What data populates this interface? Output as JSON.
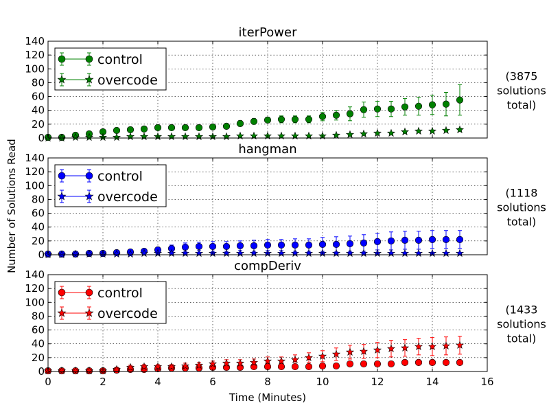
{
  "figure": {
    "xlabel": "Time (Minutes)",
    "ylabel": "Number of Solutions Read"
  },
  "chart_data": [
    {
      "type": "scatter",
      "title": "iterPower",
      "note": [
        "(3875",
        "solutions",
        "total)"
      ],
      "color": "#008000",
      "xlim": [
        0,
        16
      ],
      "ylim": [
        0,
        140
      ],
      "xticks": [
        "0",
        "2",
        "4",
        "6",
        "8",
        "10",
        "12",
        "14",
        "16"
      ],
      "yticks": [
        "0",
        "20",
        "40",
        "60",
        "80",
        "100",
        "120",
        "140"
      ],
      "grid": true,
      "legend_position": "upper-left",
      "x": [
        0,
        0.5,
        1,
        1.5,
        2,
        2.5,
        3,
        3.5,
        4,
        4.5,
        5,
        5.5,
        6,
        6.5,
        7,
        7.5,
        8,
        8.5,
        9,
        9.5,
        10,
        10.5,
        11,
        11.5,
        12,
        12.5,
        13,
        13.5,
        14,
        14.5,
        15
      ],
      "series": [
        {
          "name": "control",
          "marker": "circle",
          "values": [
            1,
            1,
            4,
            6,
            9,
            11,
            12,
            13,
            15,
            15,
            15,
            15,
            16,
            17,
            21,
            24,
            26,
            27,
            27,
            27,
            31,
            33,
            35,
            41,
            42,
            42,
            45,
            46,
            48,
            49,
            55
          ],
          "errors": [
            1,
            1,
            2,
            3,
            3,
            3,
            3,
            3,
            3,
            3,
            3,
            3,
            3,
            3,
            4,
            4,
            4,
            5,
            5,
            5,
            6,
            7,
            10,
            11,
            11,
            11,
            12,
            13,
            14,
            17,
            22
          ]
        },
        {
          "name": "overcode",
          "marker": "star",
          "values": [
            0,
            0,
            1,
            1,
            1,
            1,
            2,
            2,
            2,
            2,
            2,
            2,
            2,
            2,
            3,
            3,
            3,
            3,
            3,
            3,
            3,
            4,
            5,
            6,
            7,
            7,
            9,
            10,
            10,
            11,
            12
          ],
          "errors": [
            0,
            0,
            1,
            1,
            1,
            1,
            1,
            1,
            1,
            1,
            1,
            1,
            1,
            1,
            1,
            1,
            1,
            1,
            1,
            1,
            1,
            1,
            1,
            1,
            1,
            1,
            1,
            1,
            1,
            1,
            2
          ]
        }
      ]
    },
    {
      "type": "scatter",
      "title": "hangman",
      "note": [
        "(1118",
        "solutions",
        "total)"
      ],
      "color": "#0000ff",
      "xlim": [
        0,
        16
      ],
      "ylim": [
        0,
        140
      ],
      "xticks": [
        "0",
        "2",
        "4",
        "6",
        "8",
        "10",
        "12",
        "14",
        "16"
      ],
      "yticks": [
        "0",
        "20",
        "40",
        "60",
        "80",
        "100",
        "120",
        "140"
      ],
      "grid": true,
      "legend_position": "upper-left",
      "x": [
        0,
        0.5,
        1,
        1.5,
        2,
        2.5,
        3,
        3.5,
        4,
        4.5,
        5,
        5.5,
        6,
        6.5,
        7,
        7.5,
        8,
        8.5,
        9,
        9.5,
        10,
        10.5,
        11,
        11.5,
        12,
        12.5,
        13,
        13.5,
        14,
        14.5,
        15
      ],
      "series": [
        {
          "name": "control",
          "marker": "circle",
          "values": [
            1,
            1,
            1,
            2,
            2,
            3,
            4,
            5,
            7,
            9,
            11,
            12,
            12,
            12,
            13,
            13,
            14,
            14,
            14,
            14,
            15,
            15,
            16,
            17,
            19,
            20,
            21,
            21,
            22,
            22,
            22
          ],
          "errors": [
            1,
            1,
            1,
            1,
            1,
            1,
            2,
            3,
            4,
            5,
            6,
            6,
            7,
            7,
            7,
            8,
            8,
            8,
            9,
            9,
            10,
            11,
            11,
            12,
            12,
            13,
            13,
            13,
            13,
            13,
            13
          ]
        },
        {
          "name": "overcode",
          "marker": "star",
          "values": [
            0,
            0,
            1,
            1,
            1,
            1,
            1,
            2,
            2,
            2,
            2,
            2,
            2,
            2,
            2,
            2,
            2,
            2,
            2,
            2,
            2,
            2,
            2,
            2,
            2,
            2,
            2,
            2,
            2,
            2,
            2
          ],
          "errors": [
            0,
            0,
            1,
            1,
            1,
            1,
            1,
            1,
            1,
            1,
            1,
            1,
            1,
            1,
            1,
            1,
            1,
            1,
            1,
            1,
            1,
            1,
            1,
            1,
            1,
            1,
            1,
            1,
            1,
            1,
            1
          ]
        }
      ]
    },
    {
      "type": "scatter",
      "title": "compDeriv",
      "note": [
        "(1433",
        "solutions",
        "total)"
      ],
      "color": "#ff0000",
      "xlim": [
        0,
        16
      ],
      "ylim": [
        0,
        140
      ],
      "xticks": [
        "0",
        "2",
        "4",
        "6",
        "8",
        "10",
        "12",
        "14",
        "16"
      ],
      "yticks": [
        "0",
        "20",
        "40",
        "60",
        "80",
        "100",
        "120",
        "140"
      ],
      "grid": true,
      "legend_position": "upper-left",
      "x": [
        0,
        0.5,
        1,
        1.5,
        2,
        2.5,
        3,
        3.5,
        4,
        4.5,
        5,
        5.5,
        6,
        6.5,
        7,
        7.5,
        8,
        8.5,
        9,
        9.5,
        10,
        10.5,
        11,
        11.5,
        12,
        12.5,
        13,
        13.5,
        14,
        14.5,
        15
      ],
      "series": [
        {
          "name": "control",
          "marker": "circle",
          "values": [
            1,
            1,
            1,
            1,
            1,
            2,
            3,
            3,
            4,
            5,
            5,
            5,
            6,
            6,
            6,
            7,
            7,
            7,
            7,
            7,
            8,
            8,
            11,
            11,
            11,
            11,
            13,
            13,
            13,
            13,
            13
          ],
          "errors": [
            1,
            1,
            1,
            1,
            1,
            1,
            2,
            2,
            2,
            2,
            2,
            2,
            2,
            2,
            2,
            2,
            2,
            2,
            2,
            2,
            2,
            2,
            3,
            3,
            3,
            3,
            3,
            3,
            3,
            3,
            3
          ]
        },
        {
          "name": "overcode",
          "marker": "star",
          "values": [
            1,
            1,
            1,
            1,
            1,
            3,
            6,
            7,
            7,
            7,
            8,
            9,
            11,
            12,
            12,
            13,
            15,
            15,
            17,
            20,
            22,
            25,
            28,
            29,
            31,
            33,
            34,
            36,
            36,
            37,
            38
          ],
          "errors": [
            1,
            1,
            1,
            1,
            1,
            2,
            3,
            3,
            3,
            3,
            4,
            4,
            4,
            5,
            5,
            5,
            6,
            6,
            7,
            7,
            8,
            9,
            10,
            10,
            11,
            12,
            12,
            12,
            13,
            13,
            13
          ]
        }
      ]
    }
  ]
}
